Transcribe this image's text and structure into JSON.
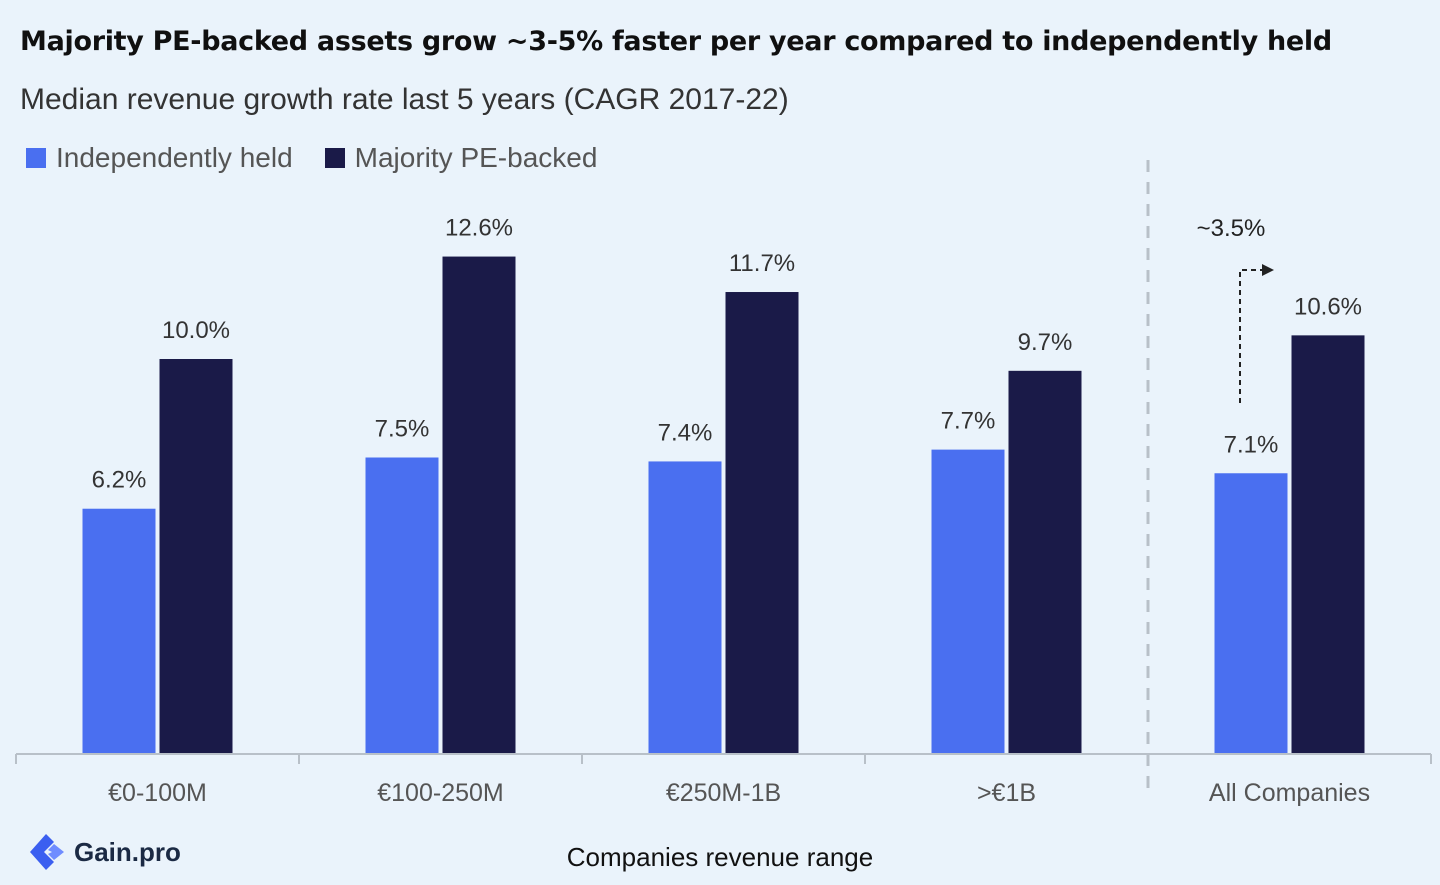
{
  "title": "Majority PE-backed assets grow ~3-5% faster per year compared to independently held",
  "subtitle": "Median revenue growth rate last 5 years (CAGR 2017-22)",
  "logo_text": "Gain.pro",
  "colors": {
    "independent": "#4a6ff0",
    "pe": "#1a1a48",
    "background": "#eaf3fb"
  },
  "chart_data": {
    "type": "bar",
    "categories": [
      "€0-100M",
      "€100-250M",
      "€250M-1B",
      ">€1B",
      "All Companies"
    ],
    "series": [
      {
        "name": "Independently held",
        "values": [
          6.2,
          7.5,
          7.4,
          7.7,
          7.1
        ],
        "labels": [
          "6.2%",
          "7.5%",
          "7.4%",
          "7.7%",
          "7.1%"
        ]
      },
      {
        "name": "Majority PE-backed",
        "values": [
          10.0,
          12.6,
          11.7,
          9.7,
          10.6
        ],
        "labels": [
          "10.0%",
          "12.6%",
          "11.7%",
          "9.7%",
          "10.6%"
        ]
      }
    ],
    "xlabel": "Companies revenue range",
    "ylim": [
      0,
      14
    ],
    "legend": "top-left",
    "grid": false,
    "annotation": "~3.5%"
  }
}
